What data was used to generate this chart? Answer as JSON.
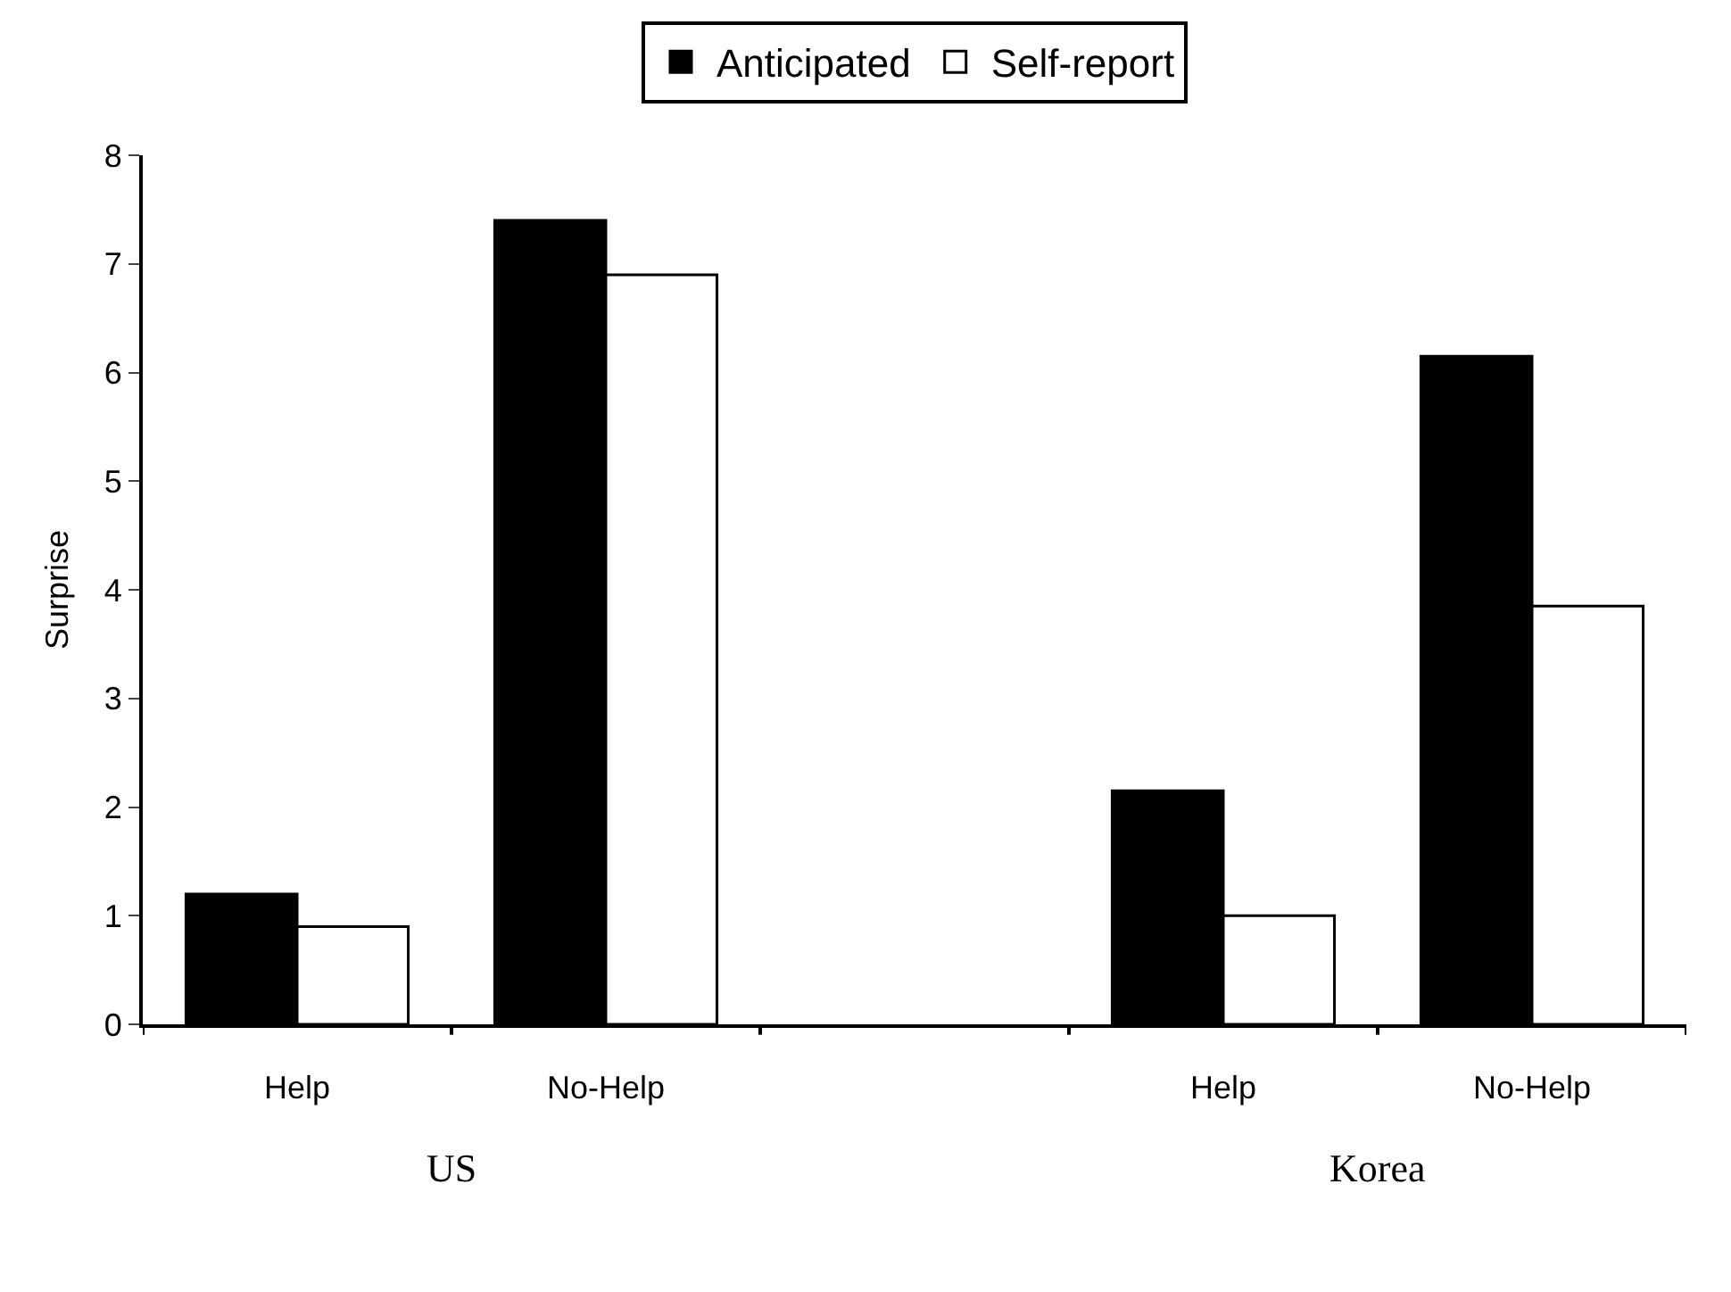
{
  "chart_data": {
    "type": "bar",
    "ylabel": "Surprise",
    "categories": [
      "Help",
      "No-Help",
      null,
      "Help",
      "No-Help"
    ],
    "series": [
      {
        "name": "Anticipated",
        "color": "#000000",
        "values": [
          1.2,
          7.4,
          null,
          2.15,
          6.15
        ]
      },
      {
        "name": "Self-report",
        "color": "#ffffff",
        "values": [
          0.9,
          6.9,
          null,
          1.0,
          3.85
        ]
      }
    ],
    "ylim": [
      0,
      8
    ],
    "yticks": [
      0,
      1,
      2,
      3,
      4,
      5,
      6,
      7,
      8
    ],
    "legend": "top",
    "annotations": [
      "US",
      "Korea"
    ]
  }
}
